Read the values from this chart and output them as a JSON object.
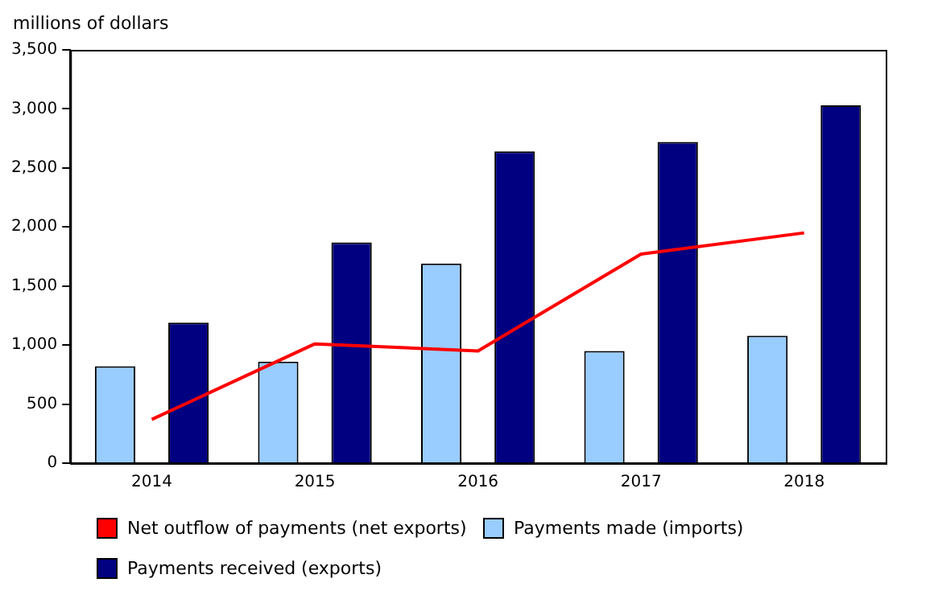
{
  "chart_data": {
    "type": "bar",
    "ylabel": "millions of dollars",
    "categories": [
      "2014",
      "2015",
      "2016",
      "2017",
      "2018"
    ],
    "series": [
      {
        "name": "Net outflow of payments (net exports)",
        "type": "line",
        "color": "#ff0000",
        "values": [
          370,
          1010,
          950,
          1770,
          1950
        ]
      },
      {
        "name": "Payments made (imports)",
        "color": "#99ccff",
        "values": [
          820,
          860,
          1690,
          950,
          1080
        ]
      },
      {
        "name": "Payments received (exports)",
        "color": "#000080",
        "values": [
          1190,
          1870,
          2640,
          2720,
          3030
        ]
      }
    ],
    "ylim": [
      0,
      3500
    ],
    "yticks": [
      0,
      500,
      {
        "value": 1000,
        "label": "1,000"
      },
      {
        "value": 1500,
        "label": "1,500"
      },
      {
        "value": 2000,
        "label": "2,000"
      },
      {
        "value": 2500,
        "label": "2,500"
      },
      {
        "value": 3000,
        "label": "3,000"
      },
      {
        "value": 3500,
        "label": "3,500"
      }
    ],
    "grid": false,
    "legend": "bottom",
    "marker": "none"
  }
}
